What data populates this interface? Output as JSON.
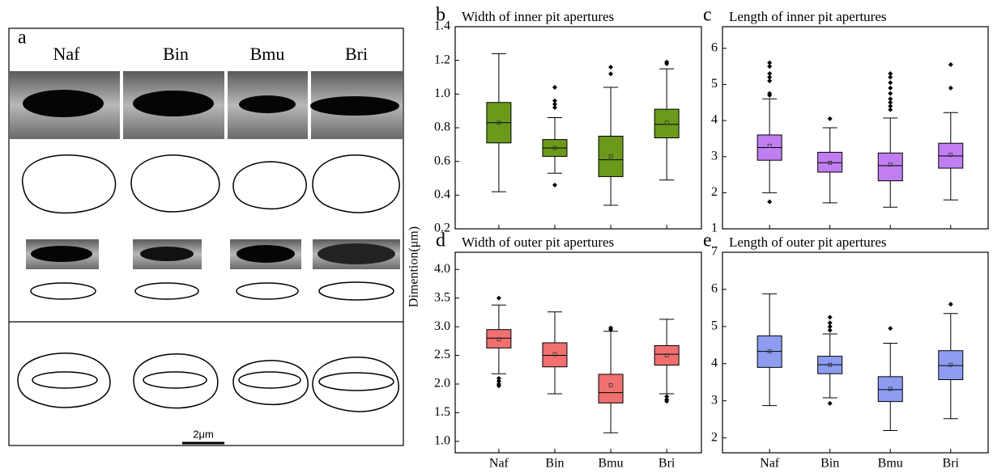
{
  "figure_a": {
    "label": "a",
    "columns": [
      "Naf",
      "Bin",
      "Bmu",
      "Bri"
    ],
    "scale_bar": "2μm"
  },
  "y_label": "Dimention(μm)",
  "chart_data": [
    {
      "type": "box",
      "label": "b",
      "title": "Width of inner pit apertures",
      "color": "#6b9a1a",
      "ylim": [
        0.2,
        1.4
      ],
      "yticks": [
        0.2,
        0.4,
        0.6,
        0.8,
        {
          "value": 1,
          "label": "1.0"
        },
        1.2,
        1.4
      ],
      "boxes": [
        {
          "min": 0.42,
          "q1": 0.71,
          "median": 0.83,
          "mean": 0.83,
          "q3": 0.95,
          "max": 1.24,
          "outliers": []
        },
        {
          "min": 0.53,
          "q1": 0.63,
          "median": 0.68,
          "mean": 0.68,
          "q3": 0.73,
          "max": 0.86,
          "outliers": [
            1.04,
            0.96,
            0.94,
            0.92,
            0.46
          ]
        },
        {
          "min": 0.34,
          "q1": 0.51,
          "median": 0.61,
          "mean": 0.63,
          "q3": 0.75,
          "max": 1.04,
          "outliers": [
            1.16,
            1.12
          ]
        },
        {
          "min": 0.49,
          "q1": 0.74,
          "median": 0.82,
          "mean": 0.83,
          "q3": 0.91,
          "max": 1.15,
          "outliers": [
            1.19,
            1.18
          ]
        }
      ]
    },
    {
      "type": "box",
      "label": "c",
      "title": "Length of inner pit apertures",
      "color": "#c07ef0",
      "ylim": [
        1,
        6.6
      ],
      "yticks": [
        1,
        2,
        3,
        4,
        5,
        6
      ],
      "boxes": [
        {
          "min": 2.0,
          "q1": 2.9,
          "median": 3.25,
          "mean": 3.3,
          "q3": 3.6,
          "max": 4.6,
          "outliers": [
            5.6,
            5.5,
            5.3,
            5.2,
            5.1,
            4.75,
            4.7,
            1.75
          ]
        },
        {
          "min": 1.72,
          "q1": 2.57,
          "median": 2.83,
          "mean": 2.83,
          "q3": 3.12,
          "max": 3.8,
          "outliers": [
            4.05
          ]
        },
        {
          "min": 1.6,
          "q1": 2.33,
          "median": 2.75,
          "mean": 2.78,
          "q3": 3.1,
          "max": 4.07,
          "outliers": [
            5.3,
            5.2,
            5.05,
            4.9,
            4.75,
            4.6,
            4.5,
            4.4,
            4.3
          ]
        },
        {
          "min": 1.8,
          "q1": 2.68,
          "median": 3.02,
          "mean": 3.05,
          "q3": 3.37,
          "max": 4.22,
          "outliers": [
            5.55,
            4.9
          ]
        }
      ]
    },
    {
      "type": "box",
      "label": "d",
      "title": "Width of outer pit apertures",
      "color": "#f07070",
      "categories": [
        "Naf",
        "Bin",
        "Bmu",
        "Bri"
      ],
      "ylim": [
        0.8,
        4.3
      ],
      "yticks": [
        {
          "value": 1,
          "label": "1.0"
        },
        1.5,
        {
          "value": 2,
          "label": "2.0"
        },
        2.5,
        {
          "value": 3,
          "label": "3.0"
        },
        3.5,
        {
          "value": 4,
          "label": "4.0"
        }
      ],
      "boxes": [
        {
          "min": 2.18,
          "q1": 2.63,
          "median": 2.8,
          "mean": 2.78,
          "q3": 2.95,
          "max": 3.38,
          "outliers": [
            3.5,
            2.1,
            2.05,
            2.0,
            1.97
          ]
        },
        {
          "min": 1.83,
          "q1": 2.3,
          "median": 2.5,
          "mean": 2.52,
          "q3": 2.72,
          "max": 3.26,
          "outliers": []
        },
        {
          "min": 1.15,
          "q1": 1.67,
          "median": 1.85,
          "mean": 1.98,
          "q3": 2.17,
          "max": 2.92,
          "outliers": [
            2.98,
            2.95
          ]
        },
        {
          "min": 1.83,
          "q1": 2.33,
          "median": 2.52,
          "mean": 2.5,
          "q3": 2.67,
          "max": 3.13,
          "outliers": [
            1.78,
            1.73,
            1.7
          ]
        }
      ]
    },
    {
      "type": "box",
      "label": "e",
      "title": "Length of outer pit apertures",
      "color": "#8d9cf0",
      "categories": [
        "Naf",
        "Bin",
        "Bmu",
        "Bri"
      ],
      "ylim": [
        1.6,
        7
      ],
      "yticks": [
        2,
        3,
        4,
        5,
        6,
        7
      ],
      "boxes": [
        {
          "min": 2.87,
          "q1": 3.9,
          "median": 4.33,
          "mean": 4.33,
          "q3": 4.75,
          "max": 5.88,
          "outliers": []
        },
        {
          "min": 3.08,
          "q1": 3.73,
          "median": 3.97,
          "mean": 3.97,
          "q3": 4.2,
          "max": 4.8,
          "outliers": [
            5.25,
            5.1,
            5.0,
            4.9,
            2.93
          ]
        },
        {
          "min": 2.2,
          "q1": 2.98,
          "median": 3.3,
          "mean": 3.32,
          "q3": 3.65,
          "max": 4.55,
          "outliers": [
            4.95
          ]
        },
        {
          "min": 2.52,
          "q1": 3.57,
          "median": 3.95,
          "mean": 3.97,
          "q3": 4.35,
          "max": 5.35,
          "outliers": [
            5.6
          ]
        }
      ]
    }
  ]
}
